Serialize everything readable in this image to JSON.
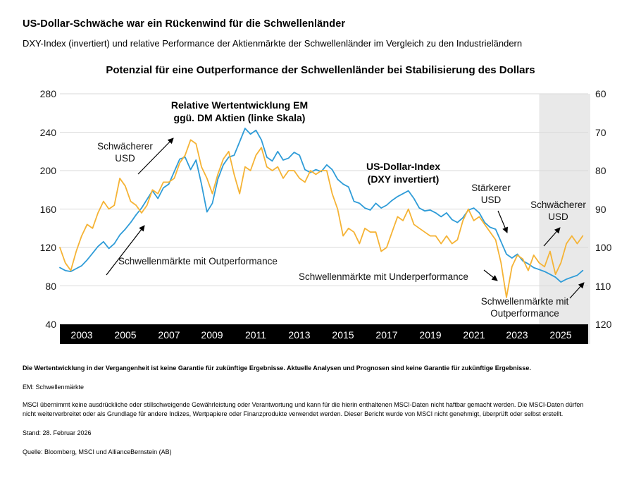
{
  "page": {
    "title": "US-Dollar-Schwäche war ein Rückenwind für die Schwellenländer",
    "subtitle": "DXY-Index (invertiert) und relative Performance der Aktienmärkte der Schwellenländer im Vergleich zu den Industrieländern"
  },
  "chart_data": {
    "type": "line",
    "title": "Potenzial für eine Outperformance der Schwellenländer bei Stabilisierung des Dollars",
    "x_start": 2002.0,
    "x_step": 0.25,
    "x_range": [
      2002.0,
      2026.25
    ],
    "x_tick_years": [
      2003,
      2005,
      2007,
      2009,
      2011,
      2013,
      2015,
      2017,
      2019,
      2021,
      2023,
      2025
    ],
    "left_axis": {
      "label": "Relative Wertentwicklung EM ggü. DM (linke Skala)",
      "min": 40,
      "max": 280,
      "ticks": [
        280,
        240,
        200,
        160,
        120,
        80,
        40
      ]
    },
    "right_axis": {
      "label": "US-Dollar-Index DXY (invertiert, rechte Skala)",
      "min": 60,
      "max": 120,
      "inverted": true,
      "ticks": [
        60,
        70,
        80,
        90,
        100,
        110,
        120
      ]
    },
    "grid": true,
    "shaded_region": {
      "x_from": 2024.0,
      "x_to": 2026.25,
      "color": "#e9e9e9"
    },
    "colors": {
      "em_line": "#2F9CD8",
      "dxy_line": "#F5B335",
      "axis_bar": "#000000",
      "gridline": "#d9d9d9"
    },
    "series": [
      {
        "name": "Relative Wertentwicklung EM ggü. DM Aktien (linke Skala)",
        "axis": "left",
        "color": "#2F9CD8",
        "values": [
          99,
          96,
          95,
          98,
          101,
          107,
          114,
          121,
          126,
          119,
          124,
          133,
          139,
          146,
          154,
          161,
          170,
          179,
          171,
          182,
          186,
          199,
          212,
          214,
          201,
          211,
          186,
          157,
          166,
          191,
          206,
          214,
          216,
          230,
          244,
          238,
          242,
          232,
          214,
          210,
          220,
          211,
          213,
          219,
          216,
          201,
          198,
          201,
          199,
          206,
          201,
          191,
          186,
          183,
          168,
          166,
          161,
          159,
          166,
          161,
          164,
          169,
          173,
          176,
          179,
          171,
          161,
          158,
          159,
          156,
          152,
          156,
          149,
          146,
          151,
          159,
          161,
          156,
          146,
          141,
          139,
          126,
          113,
          109,
          113,
          106,
          103,
          99,
          97,
          95,
          92,
          89,
          84,
          87,
          89,
          91,
          96
        ]
      },
      {
        "name": "US-Dollar-Index (DXY invertiert)",
        "axis": "right",
        "color": "#F5B335",
        "values": [
          100,
          104,
          106,
          101,
          97,
          94,
          95,
          91,
          88,
          90,
          89,
          82,
          84,
          88,
          89,
          91,
          89,
          85,
          86,
          83,
          83,
          82,
          78,
          76,
          72,
          73,
          79,
          82,
          86,
          81,
          77,
          75,
          81,
          86,
          79,
          80,
          76,
          74,
          79,
          80,
          79,
          82,
          80,
          80,
          82,
          83,
          80,
          81,
          80,
          80,
          86,
          90,
          97,
          95,
          96,
          99,
          95,
          96,
          96,
          101,
          100,
          96,
          92,
          93,
          90,
          94,
          95,
          96,
          97,
          97,
          99,
          97,
          99,
          98,
          93,
          90,
          93,
          92,
          94,
          96,
          98,
          104,
          113,
          105,
          102,
          103,
          106,
          102,
          104,
          105,
          101,
          107,
          104,
          99,
          97,
          99,
          97
        ]
      }
    ]
  },
  "annotations": {
    "em_line_label_1": "Relative Wertentwicklung EM",
    "em_line_label_2": "ggü. DM Aktien (linke Skala)",
    "weaker_usd_left": "Schwächerer USD",
    "outperformance_left": "Schwellenmärkte mit Outperformance",
    "usd_index_label_1": "US-Dollar-Index",
    "usd_index_label_2": "(DXY invertiert)",
    "stronger_usd": "Stärkerer USD",
    "weaker_usd_right": "Schwächerer USD",
    "underperformance": "Schwellenmärkte mit Underperformance",
    "outperformance_right": "Schwellenmärkte mit Outperformance"
  },
  "footer": {
    "disclaimer_bold": "Die Wertentwicklung in der Vergangenheit ist keine Garantie für zukünftige Ergebnisse. Aktuelle Analysen und Prognosen sind keine Garantie für zukünftige Ergebnisse.",
    "em_note": "EM: Schwellenmärkte",
    "msci_note": "MSCI übernimmt keine ausdrückliche oder stillschweigende Gewährleistung oder Verantwortung und kann für die hierin enthaltenen MSCI-Daten nicht haftbar gemacht werden. Die MSCI-Daten dürfen nicht weiterverbreitet oder als Grundlage für andere Indizes, Wertpapiere oder Finanzprodukte verwendet werden. Dieser Bericht wurde von MSCI nicht genehmigt, überprüft oder selbst erstellt.",
    "as_of": "Stand: 28. Februar 2026",
    "source": "Quelle: Bloomberg, MSCI und AllianceBernstein (AB)"
  }
}
